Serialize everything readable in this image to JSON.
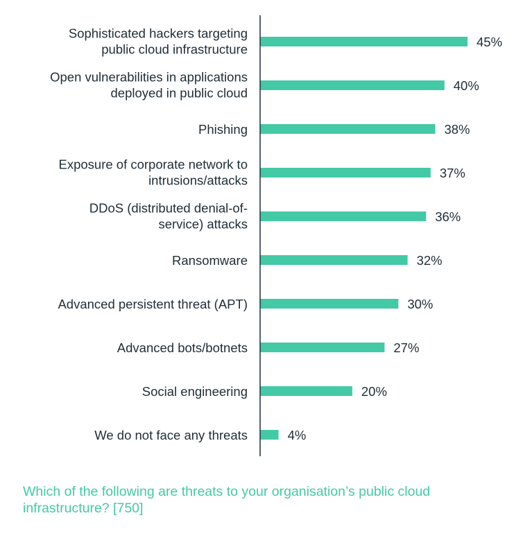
{
  "chart_data": {
    "type": "bar",
    "orientation": "horizontal",
    "categories": [
      [
        "Sophisticated hackers targeting",
        "public cloud infrastructure"
      ],
      [
        "Open vulnerabilities in applications",
        "deployed in public cloud"
      ],
      [
        "Phishing"
      ],
      [
        "Exposure of corporate network to",
        "intrusions/attacks"
      ],
      [
        "DDoS (distributed denial-of-",
        "service) attacks"
      ],
      [
        "Ransomware"
      ],
      [
        "Advanced persistent threat (APT)"
      ],
      [
        "Advanced bots/botnets"
      ],
      [
        "Social engineering"
      ],
      [
        "We do not face any threats"
      ]
    ],
    "values": [
      45,
      40,
      38,
      37,
      36,
      32,
      30,
      27,
      20,
      4
    ],
    "value_suffix": "%",
    "xlim": [
      0,
      45
    ],
    "grid": false,
    "legend": "none",
    "colors": {
      "bar": "#43c9a6",
      "text": "#1f2d36",
      "axis": "#1f2d36",
      "question": "#43c9a6"
    }
  },
  "question": "Which of the following are threats to your organisation’s public cloud infrastructure? [750]"
}
